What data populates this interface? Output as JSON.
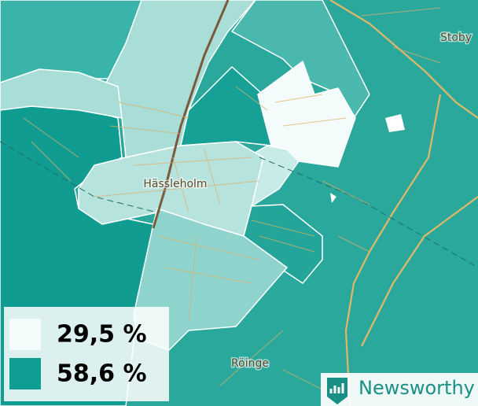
{
  "map": {
    "places": [
      {
        "label": "Hässleholm"
      },
      {
        "label": "Stoby"
      },
      {
        "label": "Röinge"
      }
    ],
    "legend": [
      {
        "label": "29,5 %",
        "color": "#f4fbfb"
      },
      {
        "label": "58,6 %",
        "color": "#0f9e93"
      }
    ]
  },
  "brand": "Newsworthy"
}
